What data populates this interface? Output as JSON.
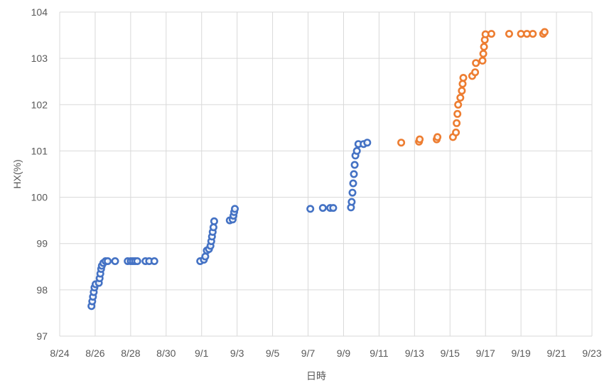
{
  "chart_data": {
    "type": "scatter",
    "xlabel": "日時",
    "ylabel": "HX(%)",
    "xlim": [
      "2023-08-24",
      "2023-09-23"
    ],
    "ylim": [
      97,
      104
    ],
    "grid": true,
    "legend": "none",
    "x_tick_labels": [
      "8/24",
      "8/26",
      "8/28",
      "8/30",
      "9/1",
      "9/3",
      "9/5",
      "9/7",
      "9/9",
      "9/11",
      "9/13",
      "9/15",
      "9/17",
      "9/19",
      "9/21",
      "9/23"
    ],
    "y_tick_labels": [
      "97",
      "98",
      "99",
      "100",
      "101",
      "102",
      "103",
      "104"
    ],
    "series": [
      {
        "color": "#4472C4",
        "points": [
          [
            "2023-08-25T19:00",
            97.65
          ],
          [
            "2023-08-25T20:00",
            97.75
          ],
          [
            "2023-08-25T21:00",
            97.85
          ],
          [
            "2023-08-25T22:00",
            97.95
          ],
          [
            "2023-08-25T23:00",
            98.05
          ],
          [
            "2023-08-26T00:30",
            98.12
          ],
          [
            "2023-08-26T05:00",
            98.15
          ],
          [
            "2023-08-26T06:00",
            98.25
          ],
          [
            "2023-08-26T07:00",
            98.35
          ],
          [
            "2023-08-26T08:00",
            98.45
          ],
          [
            "2023-08-26T09:00",
            98.52
          ],
          [
            "2023-08-26T11:00",
            98.58
          ],
          [
            "2023-08-26T14:00",
            98.62
          ],
          [
            "2023-08-26T17:00",
            98.62
          ],
          [
            "2023-08-27T03:00",
            98.62
          ],
          [
            "2023-08-27T20:00",
            98.62
          ],
          [
            "2023-08-28T00:00",
            98.62
          ],
          [
            "2023-08-28T03:00",
            98.62
          ],
          [
            "2023-08-28T06:00",
            98.62
          ],
          [
            "2023-08-28T09:00",
            98.62
          ],
          [
            "2023-08-28T20:00",
            98.62
          ],
          [
            "2023-08-29T01:00",
            98.62
          ],
          [
            "2023-08-29T08:00",
            98.62
          ],
          [
            "2023-08-31T22:00",
            98.62
          ],
          [
            "2023-09-01T03:00",
            98.65
          ],
          [
            "2023-09-01T05:00",
            98.72
          ],
          [
            "2023-09-01T07:00",
            98.85
          ],
          [
            "2023-09-01T10:00",
            98.88
          ],
          [
            "2023-09-01T12:00",
            98.95
          ],
          [
            "2023-09-01T13:00",
            99.05
          ],
          [
            "2023-09-01T14:00",
            99.15
          ],
          [
            "2023-09-01T15:00",
            99.25
          ],
          [
            "2023-09-01T16:00",
            99.35
          ],
          [
            "2023-09-01T17:00",
            99.48
          ],
          [
            "2023-09-02T14:00",
            99.5
          ],
          [
            "2023-09-02T18:00",
            99.52
          ],
          [
            "2023-09-02T19:00",
            99.6
          ],
          [
            "2023-09-02T20:00",
            99.68
          ],
          [
            "2023-09-02T21:00",
            99.75
          ],
          [
            "2023-09-07T03:00",
            99.75
          ],
          [
            "2023-09-07T20:00",
            99.77
          ],
          [
            "2023-09-08T06:00",
            99.77
          ],
          [
            "2023-09-08T10:00",
            99.77
          ],
          [
            "2023-09-09T10:00",
            99.78
          ],
          [
            "2023-09-09T11:00",
            99.9
          ],
          [
            "2023-09-09T12:00",
            100.1
          ],
          [
            "2023-09-09T13:00",
            100.3
          ],
          [
            "2023-09-09T14:00",
            100.5
          ],
          [
            "2023-09-09T15:00",
            100.7
          ],
          [
            "2023-09-09T16:00",
            100.9
          ],
          [
            "2023-09-09T18:00",
            101.0
          ],
          [
            "2023-09-09T20:00",
            101.15
          ],
          [
            "2023-09-10T03:00",
            101.15
          ],
          [
            "2023-09-10T08:00",
            101.18
          ]
        ]
      },
      {
        "color": "#ED7D31",
        "points": [
          [
            "2023-09-12T06:00",
            101.18
          ],
          [
            "2023-09-13T06:00",
            101.2
          ],
          [
            "2023-09-13T07:00",
            101.25
          ],
          [
            "2023-09-14T06:00",
            101.25
          ],
          [
            "2023-09-14T07:00",
            101.3
          ],
          [
            "2023-09-15T04:00",
            101.3
          ],
          [
            "2023-09-15T08:00",
            101.4
          ],
          [
            "2023-09-15T09:00",
            101.6
          ],
          [
            "2023-09-15T10:00",
            101.8
          ],
          [
            "2023-09-15T11:00",
            102.0
          ],
          [
            "2023-09-15T14:00",
            102.15
          ],
          [
            "2023-09-15T16:00",
            102.3
          ],
          [
            "2023-09-15T17:00",
            102.45
          ],
          [
            "2023-09-15T18:00",
            102.58
          ],
          [
            "2023-09-16T06:00",
            102.62
          ],
          [
            "2023-09-16T10:00",
            102.7
          ],
          [
            "2023-09-16T11:00",
            102.9
          ],
          [
            "2023-09-16T20:00",
            102.95
          ],
          [
            "2023-09-16T21:00",
            103.1
          ],
          [
            "2023-09-16T22:00",
            103.25
          ],
          [
            "2023-09-16T23:00",
            103.4
          ],
          [
            "2023-09-17T00:00",
            103.52
          ],
          [
            "2023-09-17T08:00",
            103.53
          ],
          [
            "2023-09-18T08:00",
            103.53
          ],
          [
            "2023-09-19T00:00",
            103.53
          ],
          [
            "2023-09-19T08:00",
            103.53
          ],
          [
            "2023-09-19T16:00",
            103.53
          ],
          [
            "2023-09-20T06:00",
            103.53
          ],
          [
            "2023-09-20T08:00",
            103.57
          ]
        ]
      }
    ]
  }
}
